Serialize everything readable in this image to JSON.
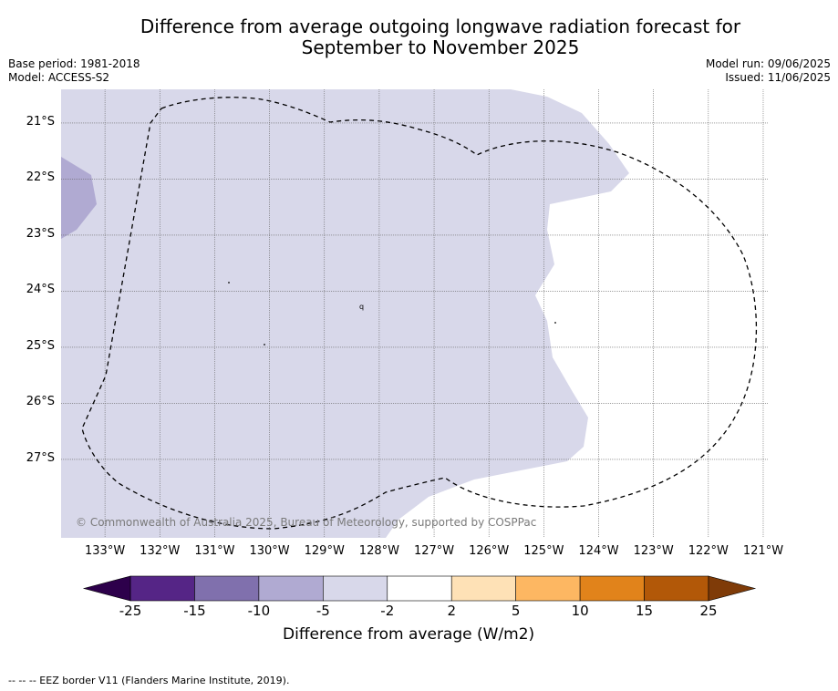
{
  "title": {
    "line1": "Difference from average outgoing longwave radiation forecast for",
    "line2": "September to November 2025"
  },
  "meta": {
    "base_period": "Base period: 1981-2018",
    "model": "Model: ACCESS-S2",
    "model_run": "Model run: 09/06/2025",
    "issued": "Issued: 11/06/2025"
  },
  "map": {
    "latitudes": [
      "21°S",
      "22°S",
      "23°S",
      "24°S",
      "25°S",
      "26°S",
      "27°S"
    ],
    "longitudes": [
      "133°W",
      "132°W",
      "131°W",
      "130°W",
      "129°W",
      "128°W",
      "127°W",
      "126°W",
      "125°W",
      "124°W",
      "123°W",
      "122°W",
      "121°W"
    ],
    "lon_range": [
      -133.8,
      -120.9
    ],
    "lat_range": [
      -28.4,
      -20.4
    ],
    "land_mark": "q",
    "colors": {
      "light_purple": "#d8d8ea",
      "mid_purple": "#b0aad2",
      "gridline": "#666666"
    }
  },
  "colorbar": {
    "title": "Difference from average (W/m2)",
    "ticks": [
      "-25",
      "-15",
      "-10",
      "-5",
      "-2",
      "2",
      "5",
      "10",
      "15",
      "25"
    ],
    "colors": [
      "#552586",
      "#8070ad",
      "#b0aad2",
      "#d8d8ea",
      "#ffffff",
      "#fee1b6",
      "#fdb762",
      "#e1831b",
      "#b25808"
    ],
    "extend_low": "#2d004b",
    "extend_high": "#7f3b08"
  },
  "copyright": "© Commonwealth of Australia 2025, Bureau of Meteorology, supported by COSPPac",
  "footnote": "--  --  -- EEZ border V11 (Flanders Marine Institute, 2019)."
}
